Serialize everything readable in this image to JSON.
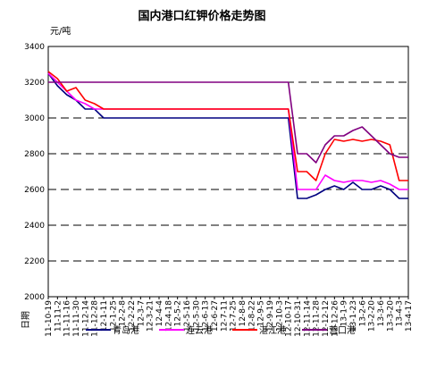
{
  "chart_data": {
    "type": "line",
    "title": "国内港口红钾价格走势图",
    "ylabel": "元/吨",
    "xlabel": "日期",
    "ylim": [
      2000,
      3400
    ],
    "yticks": [
      2000,
      2200,
      2400,
      2600,
      2800,
      3000,
      3200,
      3400
    ],
    "grid": true,
    "legend_position": "bottom",
    "x": [
      "11-10-19",
      "11-11-2",
      "11-11-16",
      "11-11-30",
      "11-12-14",
      "11-12-28",
      "12-1-11",
      "12-1-25",
      "12-2-8",
      "12-2-22",
      "12-3-7",
      "12-3-21",
      "12-4-4",
      "12-4-18",
      "12-5-2",
      "12-5-16",
      "12-5-30",
      "12-6-13",
      "12-6-27",
      "12-7-11",
      "12-7-25",
      "12-8-8",
      "12-8-22",
      "12-9-5",
      "12-9-19",
      "12-10-3",
      "12-10-17",
      "12-10-31",
      "12-11-14",
      "12-11-28",
      "12-12-12",
      "12-12-26",
      "13-1-9",
      "13-1-23",
      "13-2-6",
      "13-2-20",
      "13-3-6",
      "13-3-20",
      "13-4-3",
      "13-4-17"
    ],
    "series": [
      {
        "name": "青岛港",
        "color": "#000080",
        "values": [
          3250,
          3180,
          3130,
          3100,
          3050,
          3050,
          3000,
          3000,
          3000,
          3000,
          3000,
          3000,
          3000,
          3000,
          3000,
          3000,
          3000,
          3000,
          3000,
          3000,
          3000,
          3000,
          3000,
          3000,
          3000,
          3000,
          3000,
          2550,
          2550,
          2570,
          2600,
          2620,
          2600,
          2640,
          2600,
          2600,
          2620,
          2600,
          2550,
          2550
        ]
      },
      {
        "name": "连云港",
        "color": "#ff00ff",
        "values": [
          3250,
          3200,
          3150,
          3100,
          3080,
          3050,
          3050,
          3050,
          3050,
          3050,
          3050,
          3050,
          3050,
          3050,
          3050,
          3050,
          3050,
          3050,
          3050,
          3050,
          3050,
          3050,
          3050,
          3050,
          3050,
          3050,
          3050,
          2600,
          2600,
          2600,
          2680,
          2650,
          2640,
          2650,
          2650,
          2640,
          2650,
          2630,
          2600,
          2600
        ]
      },
      {
        "name": "湛江港",
        "color": "#ff0000",
        "values": [
          3260,
          3220,
          3150,
          3170,
          3100,
          3080,
          3050,
          3050,
          3050,
          3050,
          3050,
          3050,
          3050,
          3050,
          3050,
          3050,
          3050,
          3050,
          3050,
          3050,
          3050,
          3050,
          3050,
          3050,
          3050,
          3050,
          3050,
          2700,
          2700,
          2650,
          2800,
          2880,
          2870,
          2880,
          2870,
          2880,
          2870,
          2850,
          2650,
          2650
        ]
      },
      {
        "name": "营口港",
        "color": "#800080",
        "values": [
          3200,
          3200,
          3200,
          3200,
          3200,
          3200,
          3200,
          3200,
          3200,
          3200,
          3200,
          3200,
          3200,
          3200,
          3200,
          3200,
          3200,
          3200,
          3200,
          3200,
          3200,
          3200,
          3200,
          3200,
          3200,
          3200,
          3200,
          2800,
          2800,
          2750,
          2850,
          2900,
          2900,
          2930,
          2950,
          2900,
          2850,
          2800,
          2780,
          2780
        ]
      }
    ]
  }
}
